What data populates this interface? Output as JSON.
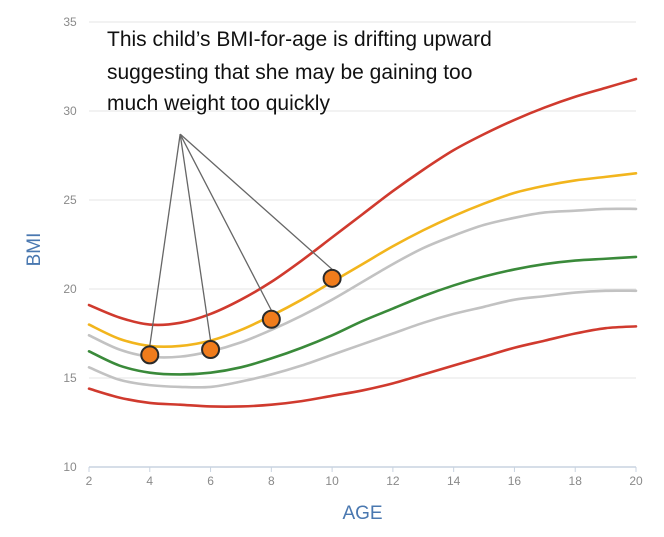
{
  "chart_data": {
    "type": "line",
    "xlabel": "AGE",
    "ylabel": "BMI",
    "xlim": [
      2,
      20
    ],
    "ylim": [
      10,
      35
    ],
    "xticks": [
      2,
      4,
      6,
      8,
      10,
      12,
      14,
      16,
      18,
      20
    ],
    "yticks": [
      10,
      15,
      20,
      25,
      30,
      35
    ],
    "grid": "horizontal",
    "annotation": {
      "lines": [
        "This child’s BMI-for-age is drifting upward",
        "suggesting that she may be gaining too",
        "much weight too quickly"
      ],
      "pointer_origin": {
        "x": 5.0,
        "y": 28.7
      }
    },
    "series": [
      {
        "color": "#d03a2e",
        "x": [
          2,
          3,
          4,
          5,
          6,
          7,
          8,
          9,
          10,
          11,
          12,
          13,
          14,
          15,
          16,
          17,
          18,
          19,
          20
        ],
        "values": [
          19.1,
          18.4,
          18.0,
          18.1,
          18.6,
          19.4,
          20.4,
          21.6,
          22.9,
          24.2,
          25.5,
          26.7,
          27.8,
          28.7,
          29.5,
          30.2,
          30.8,
          31.3,
          31.8
        ]
      },
      {
        "color": "#f2b51d",
        "x": [
          2,
          3,
          4,
          5,
          6,
          7,
          8,
          9,
          10,
          11,
          12,
          13,
          14,
          15,
          16,
          17,
          18,
          19,
          20
        ],
        "values": [
          18.0,
          17.2,
          16.8,
          16.8,
          17.1,
          17.7,
          18.5,
          19.4,
          20.4,
          21.4,
          22.4,
          23.3,
          24.1,
          24.8,
          25.4,
          25.8,
          26.1,
          26.3,
          26.5
        ]
      },
      {
        "color": "#c2c2c2",
        "x": [
          2,
          3,
          4,
          5,
          6,
          7,
          8,
          9,
          10,
          11,
          12,
          13,
          14,
          15,
          16,
          17,
          18,
          19,
          20
        ],
        "values": [
          17.4,
          16.6,
          16.2,
          16.2,
          16.5,
          17.0,
          17.7,
          18.5,
          19.4,
          20.4,
          21.4,
          22.3,
          23.0,
          23.6,
          24.0,
          24.3,
          24.4,
          24.5,
          24.5
        ]
      },
      {
        "color": "#3a8a3a",
        "x": [
          2,
          3,
          4,
          5,
          6,
          7,
          8,
          9,
          10,
          11,
          12,
          13,
          14,
          15,
          16,
          17,
          18,
          19,
          20
        ],
        "values": [
          16.5,
          15.7,
          15.3,
          15.2,
          15.3,
          15.6,
          16.1,
          16.7,
          17.4,
          18.2,
          18.9,
          19.6,
          20.2,
          20.7,
          21.1,
          21.4,
          21.6,
          21.7,
          21.8
        ]
      },
      {
        "color": "#c2c2c2",
        "x": [
          2,
          3,
          4,
          5,
          6,
          7,
          8,
          9,
          10,
          11,
          12,
          13,
          14,
          15,
          16,
          17,
          18,
          19,
          20
        ],
        "values": [
          15.6,
          14.9,
          14.6,
          14.5,
          14.5,
          14.8,
          15.2,
          15.7,
          16.3,
          16.9,
          17.5,
          18.1,
          18.6,
          19.0,
          19.4,
          19.6,
          19.8,
          19.9,
          19.9
        ]
      },
      {
        "color": "#d03a2e",
        "x": [
          2,
          3,
          4,
          5,
          6,
          7,
          8,
          9,
          10,
          11,
          12,
          13,
          14,
          15,
          16,
          17,
          18,
          19,
          20
        ],
        "values": [
          14.4,
          13.9,
          13.6,
          13.5,
          13.4,
          13.4,
          13.5,
          13.7,
          14.0,
          14.3,
          14.7,
          15.2,
          15.7,
          16.2,
          16.7,
          17.1,
          17.5,
          17.8,
          17.9
        ]
      }
    ],
    "points": {
      "color": "#f07c1c",
      "x": [
        4,
        6,
        8,
        10
      ],
      "values": [
        16.3,
        16.6,
        18.3,
        20.6
      ]
    }
  }
}
